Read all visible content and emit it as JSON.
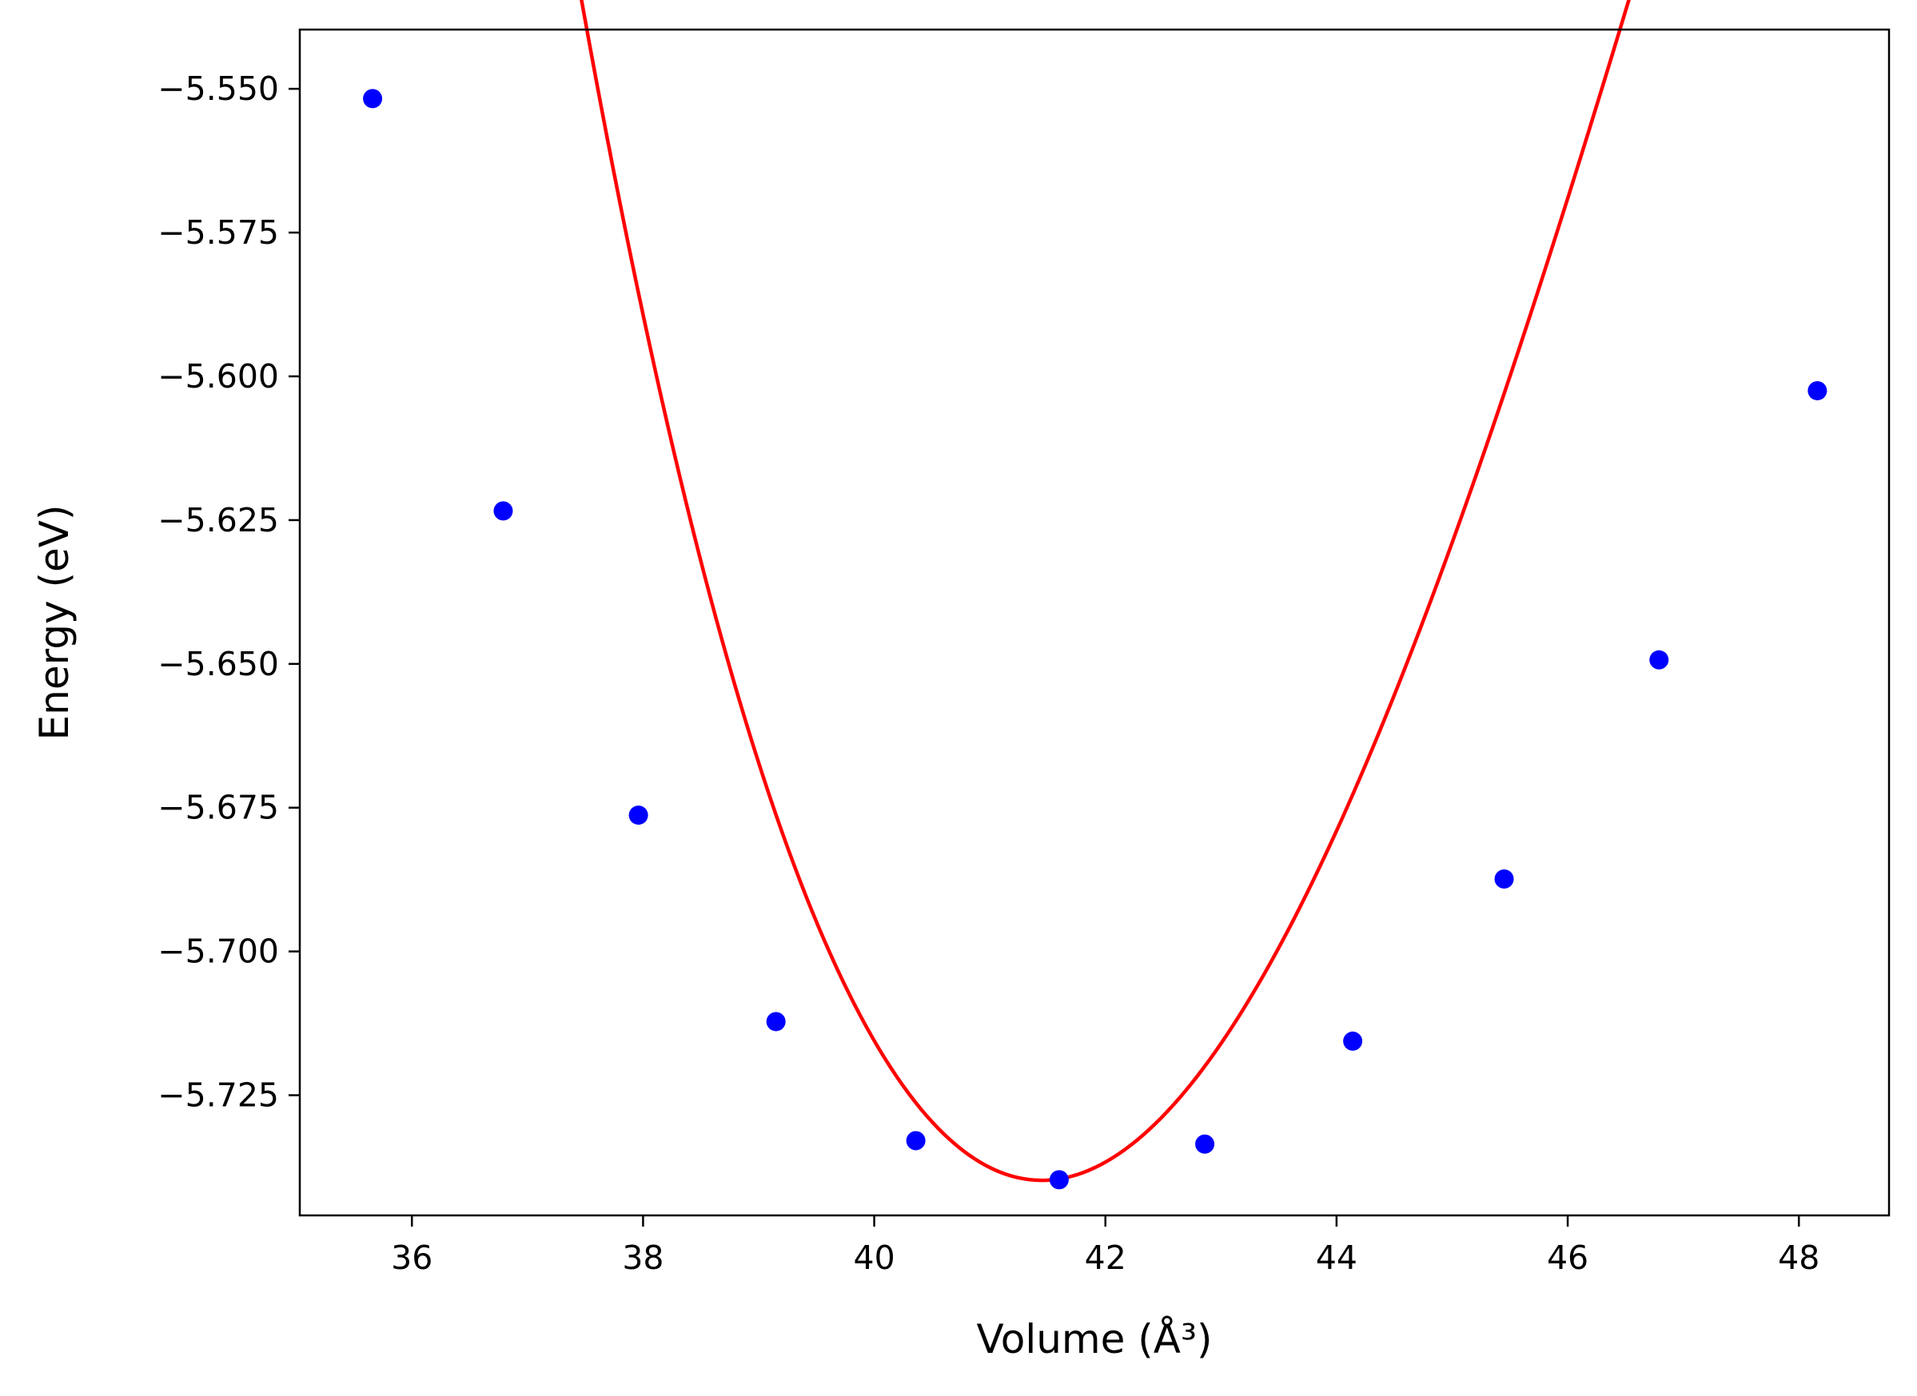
{
  "chart_data": {
    "type": "scatter",
    "title": "",
    "xlabel": "Volume (Å³)",
    "ylabel": "Energy (eV)",
    "xlim": [
      35.03,
      48.78
    ],
    "ylim": [
      -5.7459,
      -5.5397
    ],
    "x_ticks": [
      36,
      38,
      40,
      42,
      44,
      46,
      48
    ],
    "x_tick_labels": [
      "36",
      "38",
      "40",
      "42",
      "44",
      "46",
      "48"
    ],
    "y_ticks": [
      -5.55,
      -5.575,
      -5.6,
      -5.625,
      -5.65,
      -5.675,
      -5.7,
      -5.725
    ],
    "y_tick_labels": [
      "−5.550",
      "−5.575",
      "−5.600",
      "−5.625",
      "−5.650",
      "−5.675",
      "−5.700",
      "−5.725"
    ],
    "grid": false,
    "legend": "none",
    "series": [
      {
        "kind": "points",
        "color": "#0000ff",
        "x": [
          35.66,
          36.79,
          37.96,
          39.15,
          40.36,
          41.6,
          42.86,
          44.14,
          45.45,
          46.79,
          48.16
        ],
        "y": [
          -5.5517,
          -5.6234,
          -5.6763,
          -5.7122,
          -5.7329,
          -5.7397,
          -5.7335,
          -5.7156,
          -5.6874,
          -5.6493,
          -5.6025
        ]
      },
      {
        "kind": "fit-curve",
        "color": "#ff0000",
        "fit": {
          "v0": 41.45,
          "e0": -5.7398,
          "a": 0.01075,
          "b": -0.00055,
          "x_range": [
            35.66,
            48.16
          ]
        }
      }
    ]
  }
}
